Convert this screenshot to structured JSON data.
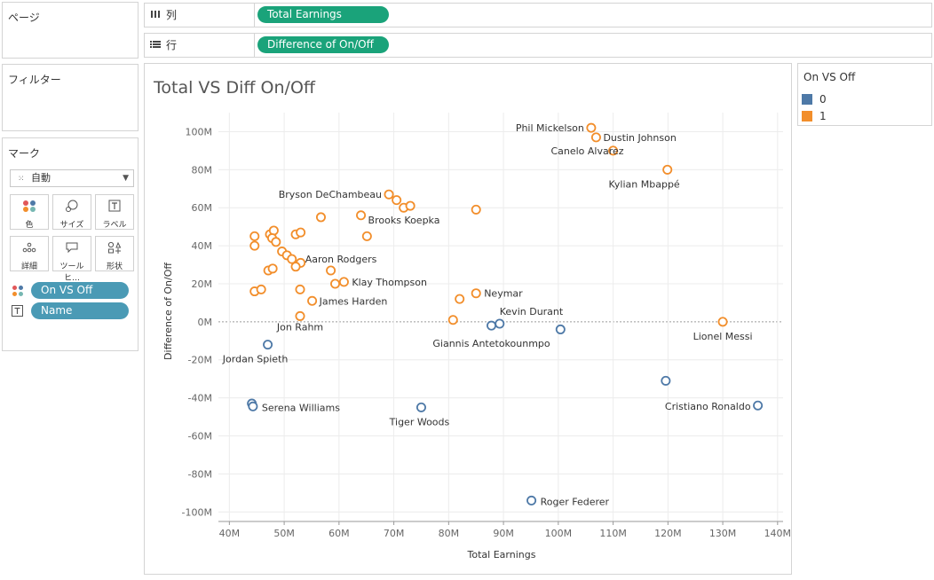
{
  "shelves": {
    "pages": {
      "label": "ページ"
    },
    "filters": {
      "label": "フィルター"
    },
    "columns": {
      "label": "列",
      "pill": "Total Earnings"
    },
    "rows": {
      "label": "行",
      "pill": "Difference of On/Off"
    }
  },
  "marks": {
    "label": "マーク",
    "mark_type": "自動",
    "buttons": [
      "色",
      "サイズ",
      "ラベル",
      "詳細",
      "ツールヒ…",
      "形状"
    ],
    "fields": [
      "On VS Off",
      "Name"
    ]
  },
  "legend": {
    "title": "On VS Off",
    "items": [
      {
        "label": "0",
        "color": "#4e79a7"
      },
      {
        "label": "1",
        "color": "#f28e2b"
      }
    ]
  },
  "chart_data": {
    "type": "scatter",
    "title": "Total VS Diff On/Off",
    "xlabel": "Total Earnings",
    "ylabel": "Difference of On/Off",
    "xlim": [
      38,
      141
    ],
    "ylim": [
      -105,
      110
    ],
    "x_ticks": [
      40,
      50,
      60,
      70,
      80,
      90,
      100,
      110,
      120,
      130,
      140
    ],
    "x_tick_labels": [
      "40M",
      "50M",
      "60M",
      "70M",
      "80M",
      "90M",
      "100M",
      "110M",
      "120M",
      "130M",
      "140M"
    ],
    "y_ticks": [
      100,
      80,
      60,
      40,
      20,
      0,
      -20,
      -40,
      -60,
      -80,
      -100
    ],
    "y_tick_labels": [
      "100M",
      "80M",
      "60M",
      "40M",
      "20M",
      "0M",
      "-20M",
      "-40M",
      "-60M",
      "-80M",
      "-100M"
    ],
    "grid": true,
    "zero_line": true,
    "series": [
      {
        "name": "0",
        "color": "#4e79a7",
        "points": [
          {
            "x": 47.0,
            "y": -12,
            "label": "Jordan Spieth"
          },
          {
            "x": 44.1,
            "y": -43,
            "label": ""
          },
          {
            "x": 44.3,
            "y": -44.5,
            "label": "Serena Williams"
          },
          {
            "x": 75.0,
            "y": -45,
            "label": "Tiger Woods"
          },
          {
            "x": 87.8,
            "y": -2,
            "label": "Giannis Antetokounmpo"
          },
          {
            "x": 89.3,
            "y": -1,
            "label": "Kevin Durant"
          },
          {
            "x": 100.4,
            "y": -4,
            "label": ""
          },
          {
            "x": 95.1,
            "y": -94,
            "label": "Roger Federer"
          },
          {
            "x": 119.6,
            "y": -31,
            "label": ""
          },
          {
            "x": 136.4,
            "y": -44,
            "label": "Cristiano Ronaldo"
          }
        ]
      },
      {
        "name": "1",
        "color": "#f28e2b",
        "points": [
          {
            "x": 106.0,
            "y": 102,
            "label": "Phil Mickelson"
          },
          {
            "x": 106.9,
            "y": 97,
            "label": "Dustin Johnson"
          },
          {
            "x": 110.0,
            "y": 90,
            "label": "Canelo Alvarez"
          },
          {
            "x": 119.9,
            "y": 80,
            "label": "Kylian Mbappé"
          },
          {
            "x": 69.1,
            "y": 67,
            "label": "Bryson DeChambeau"
          },
          {
            "x": 70.5,
            "y": 64,
            "label": ""
          },
          {
            "x": 71.8,
            "y": 60,
            "label": ""
          },
          {
            "x": 73.0,
            "y": 61,
            "label": ""
          },
          {
            "x": 85.0,
            "y": 59,
            "label": ""
          },
          {
            "x": 56.7,
            "y": 55,
            "label": ""
          },
          {
            "x": 64.0,
            "y": 56,
            "label": "Brooks Koepka"
          },
          {
            "x": 65.1,
            "y": 45,
            "label": ""
          },
          {
            "x": 44.6,
            "y": 45,
            "label": ""
          },
          {
            "x": 44.6,
            "y": 40,
            "label": ""
          },
          {
            "x": 47.4,
            "y": 46,
            "label": ""
          },
          {
            "x": 48.1,
            "y": 48,
            "label": ""
          },
          {
            "x": 47.8,
            "y": 44,
            "label": ""
          },
          {
            "x": 48.5,
            "y": 42,
            "label": ""
          },
          {
            "x": 52.1,
            "y": 46,
            "label": ""
          },
          {
            "x": 53.0,
            "y": 47,
            "label": ""
          },
          {
            "x": 49.6,
            "y": 37,
            "label": ""
          },
          {
            "x": 50.5,
            "y": 35,
            "label": ""
          },
          {
            "x": 51.4,
            "y": 33,
            "label": "Aaron Rodgers"
          },
          {
            "x": 53.0,
            "y": 31,
            "label": ""
          },
          {
            "x": 52.1,
            "y": 29,
            "label": ""
          },
          {
            "x": 47.1,
            "y": 27,
            "label": ""
          },
          {
            "x": 47.9,
            "y": 28,
            "label": ""
          },
          {
            "x": 58.5,
            "y": 27,
            "label": ""
          },
          {
            "x": 59.3,
            "y": 20,
            "label": ""
          },
          {
            "x": 60.9,
            "y": 21,
            "label": "Klay Thompson"
          },
          {
            "x": 44.6,
            "y": 16,
            "label": ""
          },
          {
            "x": 45.8,
            "y": 17,
            "label": ""
          },
          {
            "x": 52.9,
            "y": 17,
            "label": ""
          },
          {
            "x": 55.1,
            "y": 11,
            "label": "James Harden"
          },
          {
            "x": 52.9,
            "y": 3,
            "label": "Jon Rahm"
          },
          {
            "x": 82.0,
            "y": 12,
            "label": ""
          },
          {
            "x": 85.0,
            "y": 15,
            "label": "Neymar"
          },
          {
            "x": 80.8,
            "y": 1,
            "label": ""
          },
          {
            "x": 130.0,
            "y": 0,
            "label": "Lionel Messi"
          }
        ]
      }
    ]
  }
}
